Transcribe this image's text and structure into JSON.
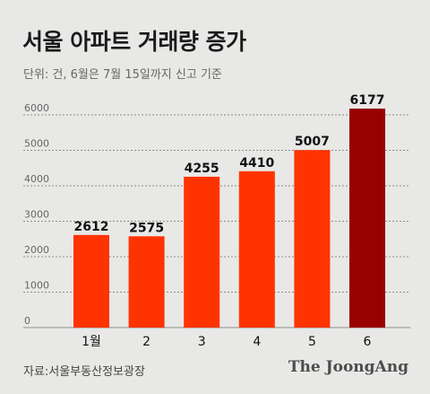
{
  "header": {
    "title": "서울 아파트 거래량 증가",
    "subtitle": "단위: 건, 6월은 7월 15일까지 신고 기준"
  },
  "footer": {
    "source": "자료:서울부동산정보광장",
    "brand": "The JoongAng"
  },
  "colors": {
    "bar": "#ff3300",
    "bar_highlight": "#990000",
    "grid": "#8c8c8c",
    "tick": "#666666",
    "label": "#111111"
  },
  "chart_data": {
    "type": "bar",
    "categories": [
      "1월",
      "2",
      "3",
      "4",
      "5",
      "6"
    ],
    "values": [
      2612,
      2575,
      4255,
      4410,
      5007,
      6177
    ],
    "value_labels": [
      "2612",
      "2575",
      "4255",
      "4410",
      "5007",
      "6177"
    ],
    "highlight_index": 5,
    "yticks": [
      "0",
      "1000",
      "2000",
      "3000",
      "4000",
      "5000",
      "6000"
    ],
    "ylim": [
      0,
      6000
    ],
    "grid": true,
    "title": "서울 아파트 거래량 증가",
    "xlabel": "",
    "ylabel": ""
  }
}
